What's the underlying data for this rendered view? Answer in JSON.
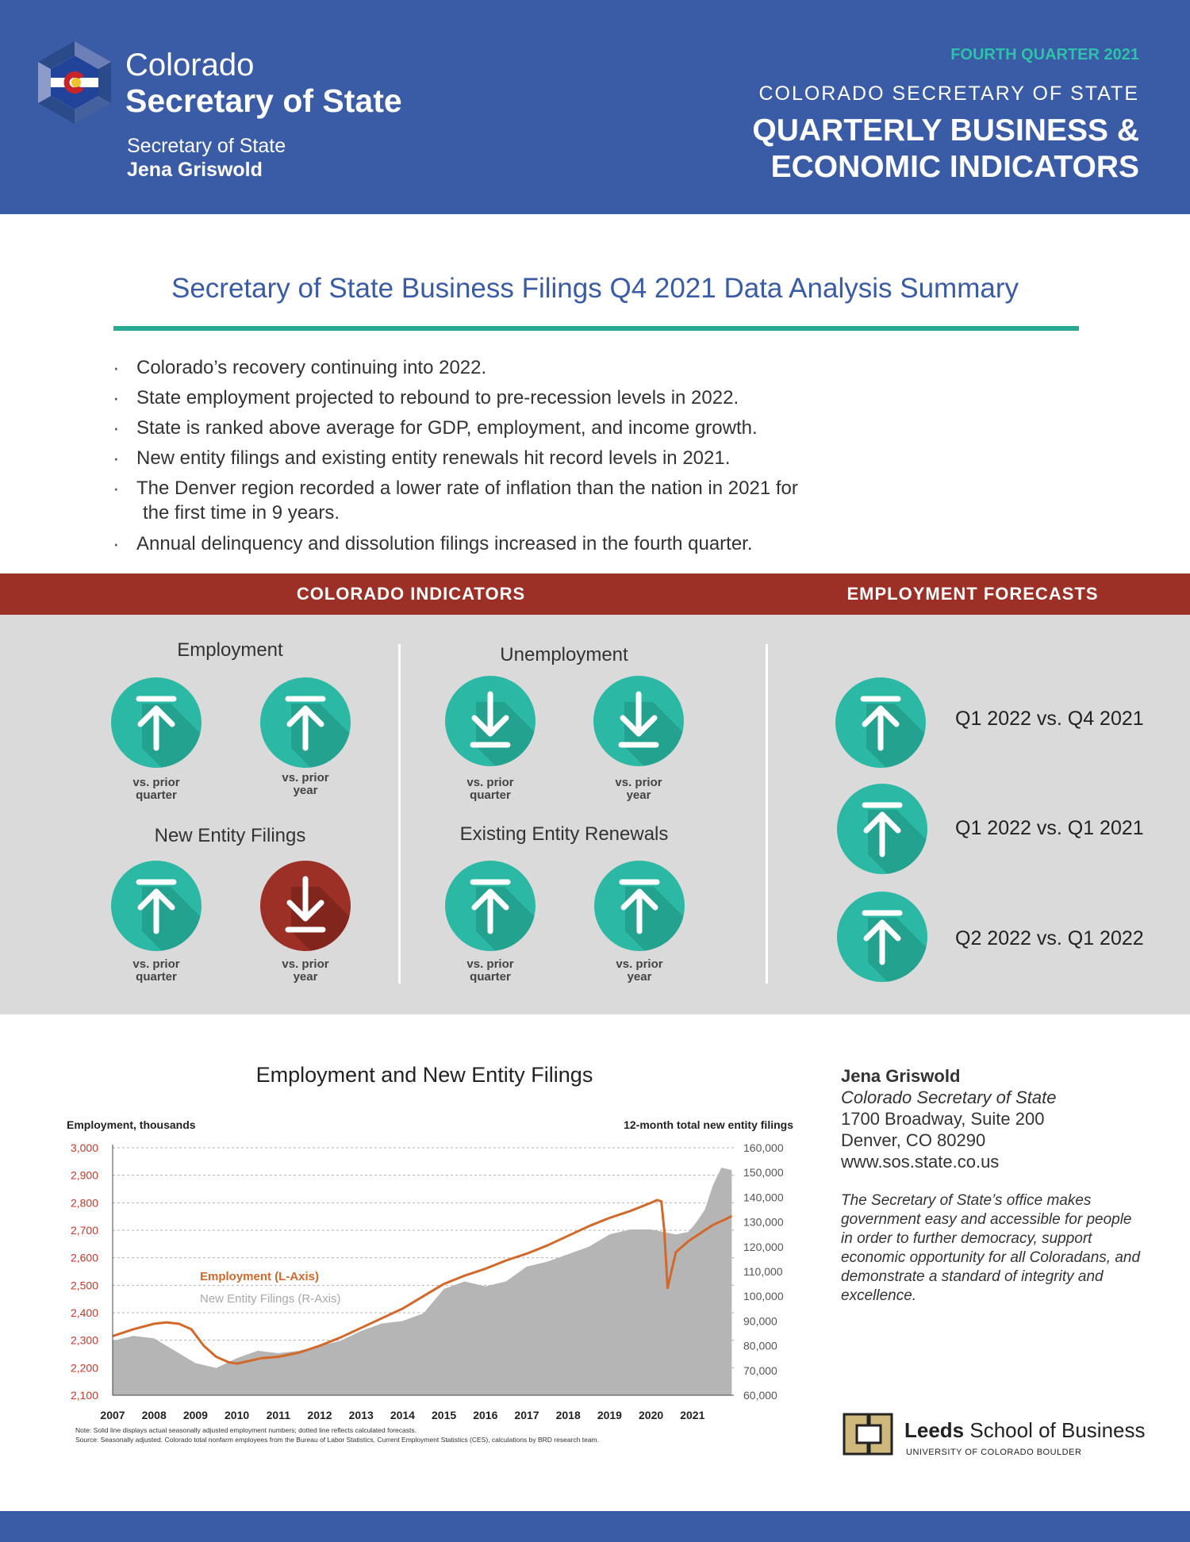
{
  "header": {
    "brand_line1": "Colorado",
    "brand_line2": "Secretary of State",
    "sos_label": "Secretary of State",
    "sos_name": "Jena Griswold",
    "quarter": "FOURTH QUARTER 2021",
    "subtitle": "COLORADO SECRETARY OF STATE",
    "title_line1": "QUARTERLY BUSINESS &",
    "title_line2": "ECONOMIC INDICATORS"
  },
  "summary": {
    "title": "Secretary of State Business Filings Q4 2021 Data Analysis Summary",
    "bullets": [
      "Colorado’s recovery continuing into 2022.",
      "State employment projected to rebound to pre-recession levels in 2022.",
      "State is ranked above average for GDP, employment, and income growth.",
      "New entity filings and existing entity renewals hit record levels in 2021.",
      "The Denver region recorded a lower rate of inflation than the nation in 2021 for",
      "the first time in 9 years.",
      "Annual delinquency and dissolution filings increased in the fourth quarter."
    ]
  },
  "indicators": {
    "section_title": "COLORADO INDICATORS",
    "forecast_title": "EMPLOYMENT FORECASTS",
    "employment": {
      "title": "Employment",
      "q_label_1": "vs. prior",
      "q_label_2": "quarter",
      "y_label_1": "vs. prior",
      "y_label_2": "year",
      "quarter_dir": "up",
      "year_dir": "up"
    },
    "unemployment": {
      "title": "Unemployment",
      "q_label_1": "vs. prior",
      "q_label_2": "quarter",
      "y_label_1": "vs. prior",
      "y_label_2": "year",
      "quarter_dir": "down",
      "year_dir": "down"
    },
    "new_entity": {
      "title": "New Entity Filings",
      "q_label_1": "vs. prior",
      "q_label_2": "quarter",
      "y_label_1": "vs. prior",
      "y_label_2": "year",
      "quarter_dir": "up",
      "year_dir": "down"
    },
    "renewals": {
      "title": "Existing Entity Renewals",
      "q_label_1": "vs. prior",
      "q_label_2": "quarter",
      "y_label_1": "vs. prior",
      "y_label_2": "year",
      "quarter_dir": "up",
      "year_dir": "up"
    },
    "forecasts": [
      {
        "label": "Q1 2022 vs. Q4 2021",
        "dir": "up"
      },
      {
        "label": "Q1 2022 vs. Q1 2021",
        "dir": "up"
      },
      {
        "label": "Q2 2022 vs. Q1 2022",
        "dir": "up"
      }
    ],
    "colors": {
      "teal": "#2bb8a4",
      "teal_shadow": "#1f8f80",
      "red": "#9c3026",
      "red_shadow": "#6e1d16"
    }
  },
  "chart_data": {
    "type": "line",
    "title": "Employment and New Entity Filings",
    "ylabel_left": "Employment, thousands",
    "ylabel_right": "12-month total new entity filings",
    "ylim_left": [
      2100,
      3000
    ],
    "ylim_right": [
      60000,
      160000
    ],
    "xlim": [
      2007,
      2022
    ],
    "x_ticks": [
      "2007",
      "2008",
      "2009",
      "2010",
      "2011",
      "2012",
      "2013",
      "2014",
      "2015",
      "2016",
      "2017",
      "2018",
      "2019",
      "2020",
      "2021"
    ],
    "y_ticks_left": [
      "2,100",
      "2,200",
      "2,300",
      "2,400",
      "2,500",
      "2,600",
      "2,700",
      "2,800",
      "2,900",
      "3,000"
    ],
    "y_ticks_right": [
      "60,000",
      "70,000",
      "80,000",
      "90,000",
      "100,000",
      "110,000",
      "120,000",
      "130,000",
      "140,000",
      "150,000",
      "160,000"
    ],
    "series": [
      {
        "name": "Employment (L-Axis)",
        "axis": "left",
        "color": "#d2692a",
        "x": [
          2007.0,
          2007.5,
          2008.0,
          2008.3,
          2008.6,
          2008.9,
          2009.2,
          2009.5,
          2009.8,
          2010.0,
          2010.3,
          2010.6,
          2011.0,
          2011.5,
          2012.0,
          2012.5,
          2013.0,
          2013.5,
          2014.0,
          2014.5,
          2015.0,
          2015.5,
          2016.0,
          2016.5,
          2017.0,
          2017.5,
          2018.0,
          2018.5,
          2019.0,
          2019.5,
          2020.0,
          2020.15,
          2020.25,
          2020.32,
          2020.4,
          2020.6,
          2020.9,
          2021.2,
          2021.5,
          2021.8,
          2021.95
        ],
        "y": [
          2315,
          2340,
          2360,
          2365,
          2360,
          2340,
          2280,
          2240,
          2220,
          2215,
          2225,
          2235,
          2240,
          2255,
          2280,
          2310,
          2345,
          2380,
          2415,
          2460,
          2505,
          2535,
          2560,
          2590,
          2615,
          2645,
          2680,
          2715,
          2745,
          2770,
          2800,
          2810,
          2805,
          2700,
          2490,
          2620,
          2660,
          2690,
          2720,
          2740,
          2752
        ]
      },
      {
        "name": "New Entity Filings (R-Axis)",
        "axis": "right",
        "color": "#b5b5b5",
        "x": [
          2007.0,
          2007.5,
          2008.0,
          2008.5,
          2009.0,
          2009.5,
          2010.0,
          2010.5,
          2011.0,
          2011.5,
          2012.0,
          2012.5,
          2013.0,
          2013.5,
          2014.0,
          2014.5,
          2015.0,
          2015.5,
          2016.0,
          2016.5,
          2017.0,
          2017.5,
          2018.0,
          2018.5,
          2019.0,
          2019.5,
          2020.0,
          2020.3,
          2020.6,
          2020.9,
          2021.1,
          2021.3,
          2021.5,
          2021.7,
          2021.95
        ],
        "y": [
          82000,
          84000,
          83000,
          78000,
          73000,
          71000,
          75000,
          78000,
          77000,
          78000,
          80000,
          82000,
          86000,
          89000,
          90000,
          93000,
          103000,
          106000,
          104000,
          106000,
          112000,
          114000,
          117000,
          120000,
          125000,
          127000,
          127000,
          126000,
          125000,
          126000,
          130000,
          135000,
          145000,
          152000,
          151000
        ]
      }
    ],
    "legend": "center-left",
    "note": "Note: Solid line displays actual seasonally adjusted employment numbers; dotted line reflects calculated forecasts.",
    "source": "Source: Seasonally adjusted. Colorado total nonfarm employees from the Bureau of Labor Statistics, Current Employment Statistics (CES), calculations by BRD research team."
  },
  "contact": {
    "name": "Jena Griswold",
    "title": "Colorado Secretary of State",
    "address1": "1700 Broadway, Suite 200",
    "address2": "Denver, CO 80290",
    "website": "www.sos.state.co.us",
    "mission": "The Secretary of State’s office makes government easy and accessible for people in order to further democracy, support economic opportunity for all Coloradans, and demonstrate a standard of integrity and excellence."
  },
  "leeds": {
    "bold": "Leeds",
    "rest": " School of Business",
    "sub": "UNIVERSITY OF COLORADO BOULDER"
  }
}
